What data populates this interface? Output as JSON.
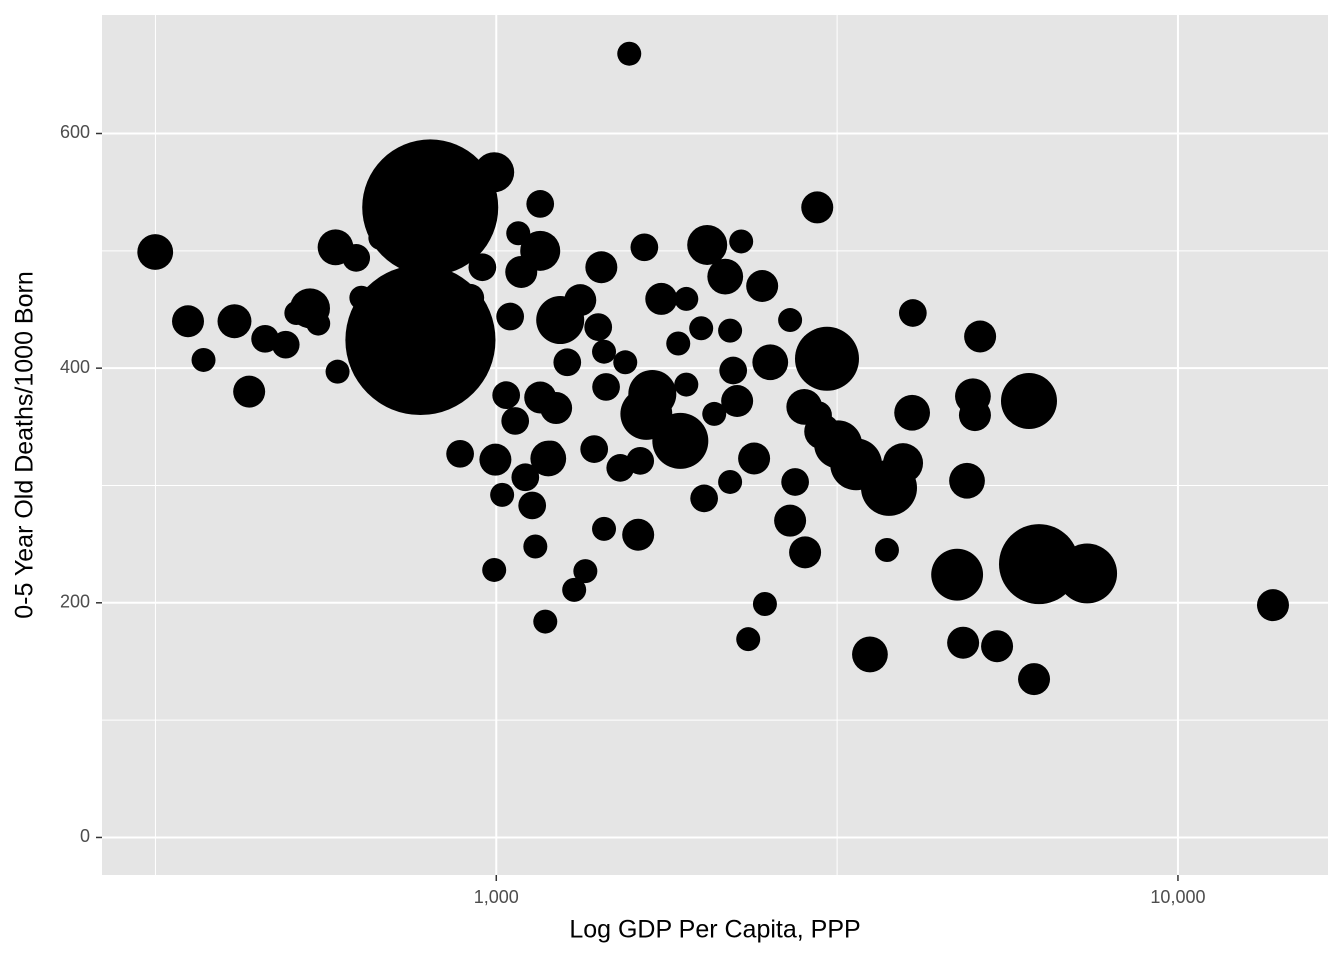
{
  "chart_data": {
    "type": "bubble",
    "x_label": "Log GDP Per Capita, PPP",
    "y_label": "0-5 Year Old Deaths/1000 Born",
    "x_log": true,
    "grid": true,
    "color": "#000000",
    "xlim": [
      264,
      16600
    ],
    "ylim": [
      -32,
      701
    ],
    "xticks": [
      {
        "value": 1000,
        "label": "1,000"
      },
      {
        "value": 10000,
        "label": "10,000"
      }
    ],
    "x_minor_ticks": [
      316.23,
      3162.28
    ],
    "yticks": [
      0,
      200,
      400,
      600
    ],
    "y_minor_ticks": [
      100,
      300,
      500
    ],
    "x": [
      316,
      353,
      372,
      413,
      434,
      458,
      491,
      509,
      533,
      581,
      623,
      585,
      634,
      676,
      718,
      800,
      774,
      743,
      916,
      885,
      954,
      993,
      997,
      993,
      1020,
      1034,
      1048,
      1077,
      1088,
      1103,
      1129,
      1141,
      1160,
      1160,
      1160,
      1180,
      1192,
      1224,
      1204,
      1271,
      1301,
      1241,
      1328,
      1351,
      1392,
      1411,
      1426,
      1439,
      1449,
      1439,
      1520,
      1546,
      1567,
      1615,
      1649,
      1626,
      1694,
      1660,
      1746,
      1862,
      1849,
      1900,
      1900,
      1998,
      2018,
      2039,
      2088,
      2167,
      2203,
      2203,
      2256,
      2287,
      2226,
      2342,
      2389,
      2455,
      2478,
      2523,
      2698,
      2698,
      2744,
      2838,
      2830,
      2957,
      2965,
      3056,
      3006,
      3173,
      3372,
      3533,
      3742,
      3768,
      3951,
      4074,
      4084,
      4743,
      4840,
      4904,
      5003,
      5037,
      5126,
      5428,
      6046,
      6150,
      6254,
      7358,
      13785,
      548,
      1066
    ],
    "values": [
      499,
      440,
      407,
      440,
      380,
      425,
      420,
      447,
      451,
      503,
      494,
      397,
      460,
      511,
      470,
      537,
      424,
      455,
      460,
      327,
      486,
      567,
      322,
      228,
      292,
      377,
      444,
      515,
      482,
      307,
      283,
      248,
      540,
      500,
      375,
      184,
      323,
      366,
      328,
      405,
      211,
      441,
      458,
      227,
      331,
      435,
      486,
      414,
      384,
      263,
      315,
      405,
      668,
      258,
      503,
      321,
      378,
      361,
      459,
      338,
      421,
      386,
      459,
      434,
      289,
      505,
      361,
      478,
      303,
      432,
      372,
      508,
      398,
      169,
      323,
      470,
      199,
      405,
      441,
      270,
      303,
      243,
      367,
      537,
      360,
      408,
      346,
      335,
      318,
      156,
      245,
      298,
      319,
      362,
      447,
      224,
      166,
      304,
      376,
      360,
      427,
      163,
      372,
      135,
      233,
      225,
      198,
      438,
      355
    ],
    "sizes": [
      20,
      16,
      9,
      18,
      16,
      12,
      12,
      9,
      25,
      20,
      12,
      9,
      9,
      9,
      9,
      289,
      352,
      25,
      12,
      12,
      12,
      25,
      16,
      9,
      9,
      12,
      12,
      9,
      16,
      12,
      12,
      9,
      12,
      25,
      16,
      9,
      20,
      16,
      9,
      12,
      9,
      36,
      16,
      9,
      12,
      12,
      16,
      9,
      12,
      9,
      12,
      9,
      9,
      16,
      12,
      12,
      36,
      42,
      16,
      49,
      9,
      9,
      9,
      9,
      12,
      25,
      9,
      20,
      9,
      9,
      16,
      9,
      12,
      9,
      16,
      16,
      9,
      20,
      9,
      16,
      12,
      16,
      20,
      16,
      12,
      64,
      20,
      36,
      42,
      20,
      9,
      49,
      25,
      20,
      12,
      42,
      16,
      20,
      20,
      16,
      16,
      16,
      49,
      16,
      100,
      56,
      16,
      9,
      12
    ]
  }
}
